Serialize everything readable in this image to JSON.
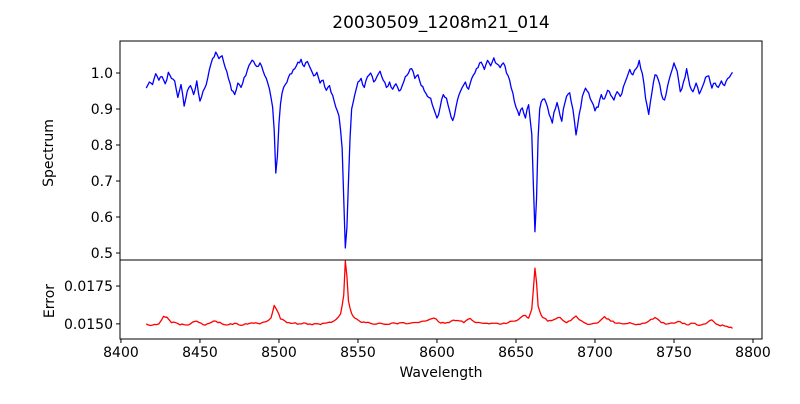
{
  "figure": {
    "background": "#ffffff",
    "axis_color": "#000000"
  },
  "chart_data": [
    {
      "type": "line",
      "title": "20030509_1208m21_014",
      "xlabel": "",
      "ylabel": "Spectrum",
      "xlim": [
        8399.4,
        8805.7
      ],
      "ylim": [
        0.4806,
        1.0889
      ],
      "grid": false,
      "legend": null,
      "yticks": [
        0.5,
        0.6,
        0.7,
        0.8,
        0.9,
        1.0
      ],
      "ytick_labels": [
        "0.5",
        "0.6",
        "0.7",
        "0.8",
        "0.9",
        "1.0"
      ],
      "xticks": [
        8400,
        8450,
        8500,
        8550,
        8600,
        8650,
        8700,
        8750,
        8800
      ],
      "xtick_labels": [
        "8400",
        "8450",
        "8500",
        "8550",
        "8600",
        "8650",
        "8700",
        "8750",
        "8800"
      ],
      "xtick_labels_visible": false,
      "noise": {
        "amplitude": 0.006,
        "step": 1.3,
        "seed": 11
      },
      "series": [
        {
          "name": "spectrum",
          "color": "#0000ff",
          "x": [
            8416,
            8418,
            8420,
            8422,
            8424,
            8426,
            8428,
            8430,
            8432,
            8434,
            8436,
            8438,
            8440,
            8442,
            8444,
            8446,
            8448,
            8450,
            8452,
            8454,
            8456,
            8458,
            8460,
            8462,
            8464,
            8466,
            8468,
            8470,
            8472,
            8474,
            8476,
            8478,
            8480,
            8482,
            8484,
            8486,
            8488,
            8490,
            8492,
            8494,
            8496,
            8497,
            8498,
            8499,
            8500,
            8501,
            8502,
            8504,
            8506,
            8508,
            8510,
            8512,
            8514,
            8516,
            8518,
            8520,
            8522,
            8524,
            8526,
            8528,
            8530,
            8532,
            8534,
            8536,
            8538,
            8540,
            8541,
            8542,
            8543,
            8544,
            8545,
            8546,
            8548,
            8550,
            8552,
            8554,
            8556,
            8558,
            8560,
            8562,
            8564,
            8566,
            8568,
            8570,
            8572,
            8574,
            8576,
            8578,
            8580,
            8582,
            8584,
            8586,
            8588,
            8590,
            8592,
            8594,
            8596,
            8598,
            8600,
            8602,
            8604,
            8606,
            8608,
            8610,
            8612,
            8614,
            8616,
            8618,
            8620,
            8622,
            8624,
            8626,
            8628,
            8630,
            8632,
            8634,
            8636,
            8638,
            8640,
            8642,
            8644,
            8646,
            8648,
            8650,
            8652,
            8654,
            8656,
            8658,
            8660,
            8661,
            8662,
            8663,
            8664,
            8665,
            8666,
            8668,
            8670,
            8672,
            8673,
            8674,
            8676,
            8678,
            8679,
            8680,
            8682,
            8684,
            8686,
            8688,
            8690,
            8692,
            8694,
            8696,
            8698,
            8700,
            8702,
            8704,
            8706,
            8708,
            8710,
            8712,
            8714,
            8716,
            8718,
            8720,
            8722,
            8724,
            8726,
            8728,
            8730,
            8732,
            8734,
            8736,
            8738,
            8740,
            8742,
            8744,
            8746,
            8748,
            8750,
            8752,
            8754,
            8756,
            8758,
            8760,
            8762,
            8764,
            8766,
            8768,
            8770,
            8772,
            8774,
            8776,
            8778,
            8780,
            8782,
            8784,
            8786,
            8787
          ],
          "y": [
            0.958,
            0.975,
            0.968,
            0.998,
            0.98,
            0.99,
            0.97,
            1.002,
            0.985,
            0.978,
            0.932,
            0.968,
            0.908,
            0.95,
            0.965,
            0.94,
            0.978,
            0.922,
            0.95,
            0.968,
            1.01,
            1.04,
            1.058,
            1.04,
            1.048,
            1.015,
            0.985,
            0.952,
            0.94,
            0.972,
            0.96,
            0.988,
            1.008,
            1.028,
            1.032,
            1.018,
            1.028,
            1.005,
            0.985,
            0.955,
            0.905,
            0.84,
            0.722,
            0.768,
            0.86,
            0.915,
            0.945,
            0.968,
            0.988,
            0.998,
            1.012,
            1.03,
            1.038,
            1.018,
            1.032,
            1.012,
            0.992,
            1.002,
            0.972,
            0.98,
            0.952,
            0.965,
            0.938,
            0.905,
            0.88,
            0.79,
            0.65,
            0.514,
            0.57,
            0.7,
            0.82,
            0.9,
            0.94,
            0.975,
            0.985,
            0.96,
            0.99,
            1.0,
            0.975,
            0.99,
            1.005,
            0.98,
            0.96,
            0.975,
            0.955,
            0.97,
            0.95,
            0.965,
            0.99,
            1.0,
            1.012,
            0.985,
            0.995,
            0.965,
            0.95,
            0.935,
            0.93,
            0.9,
            0.875,
            0.905,
            0.94,
            0.93,
            0.895,
            0.868,
            0.905,
            0.94,
            0.96,
            0.975,
            0.955,
            0.985,
            1.0,
            1.015,
            1.03,
            1.01,
            1.035,
            1.02,
            1.042,
            1.025,
            1.015,
            1.028,
            1.0,
            0.98,
            0.945,
            0.905,
            0.882,
            0.903,
            0.875,
            0.912,
            0.83,
            0.69,
            0.559,
            0.65,
            0.82,
            0.9,
            0.92,
            0.928,
            0.905,
            0.875,
            0.861,
            0.89,
            0.918,
            0.88,
            0.866,
            0.9,
            0.935,
            0.945,
            0.9,
            0.828,
            0.885,
            0.935,
            0.958,
            0.945,
            0.92,
            0.895,
            0.905,
            0.94,
            0.928,
            0.952,
            0.938,
            0.925,
            0.948,
            0.935,
            0.962,
            0.985,
            1.01,
            0.995,
            1.012,
            1.035,
            0.998,
            0.93,
            0.885,
            0.945,
            0.995,
            0.982,
            0.942,
            0.925,
            0.965,
            0.998,
            1.028,
            1.005,
            0.948,
            0.975,
            1.012,
            0.965,
            0.948,
            0.972,
            0.942,
            0.962,
            0.988,
            0.992,
            0.958,
            0.972,
            0.96,
            0.978,
            0.965,
            0.985,
            0.995,
            1.002
          ]
        }
      ]
    },
    {
      "type": "line",
      "title": "",
      "xlabel": "Wavelength",
      "ylabel": "Error",
      "xlim": [
        8399.4,
        8805.7
      ],
      "ylim": [
        0.014,
        0.01922
      ],
      "grid": false,
      "legend": null,
      "yticks": [
        0.015,
        0.0175
      ],
      "ytick_labels": [
        "0.0150",
        "0.0175"
      ],
      "xticks": [
        8400,
        8450,
        8500,
        8550,
        8600,
        8650,
        8700,
        8750,
        8800
      ],
      "xtick_labels": [
        "8400",
        "8450",
        "8500",
        "8550",
        "8600",
        "8650",
        "8700",
        "8750",
        "8800"
      ],
      "xtick_labels_visible": true,
      "noise": {
        "amplitude": 6e-05,
        "step": 1.3,
        "seed": 23
      },
      "series": [
        {
          "name": "error",
          "color": "#ff0000",
          "x": [
            8416,
            8420,
            8424,
            8427,
            8429,
            8432,
            8436,
            8440,
            8444,
            8448,
            8452,
            8456,
            8460,
            8464,
            8468,
            8472,
            8476,
            8480,
            8484,
            8488,
            8492,
            8495,
            8497,
            8499,
            8501,
            8505,
            8509,
            8513,
            8517,
            8521,
            8525,
            8529,
            8533,
            8536,
            8539,
            8541,
            8542,
            8543,
            8544,
            8546,
            8548,
            8551,
            8555,
            8559,
            8563,
            8567,
            8571,
            8575,
            8579,
            8583,
            8587,
            8591,
            8595,
            8598,
            8601,
            8605,
            8609,
            8613,
            8617,
            8621,
            8625,
            8629,
            8633,
            8637,
            8641,
            8645,
            8649,
            8653,
            8656,
            8658,
            8660,
            8662,
            8663,
            8664,
            8666,
            8668,
            8670,
            8674,
            8678,
            8682,
            8686,
            8688,
            8690,
            8694,
            8698,
            8702,
            8706,
            8710,
            8714,
            8718,
            8722,
            8726,
            8730,
            8734,
            8738,
            8742,
            8746,
            8750,
            8754,
            8758,
            8762,
            8766,
            8770,
            8774,
            8778,
            8782,
            8785,
            8787
          ],
          "y": [
            0.015,
            0.01492,
            0.015,
            0.0155,
            0.01545,
            0.01508,
            0.01502,
            0.01494,
            0.015,
            0.01518,
            0.01494,
            0.01504,
            0.01518,
            0.015,
            0.01494,
            0.01504,
            0.0149,
            0.01498,
            0.01504,
            0.015,
            0.01515,
            0.0154,
            0.01622,
            0.01585,
            0.01532,
            0.01508,
            0.01504,
            0.015,
            0.01504,
            0.01494,
            0.015,
            0.01504,
            0.0151,
            0.01528,
            0.01565,
            0.0169,
            0.01915,
            0.01815,
            0.0165,
            0.01568,
            0.01538,
            0.01518,
            0.01508,
            0.015,
            0.01504,
            0.01497,
            0.01504,
            0.015,
            0.01508,
            0.01504,
            0.01509,
            0.01518,
            0.01528,
            0.01538,
            0.01514,
            0.01504,
            0.01518,
            0.01522,
            0.01508,
            0.01536,
            0.01508,
            0.01504,
            0.015,
            0.01504,
            0.015,
            0.01508,
            0.01518,
            0.01542,
            0.01556,
            0.01538,
            0.01598,
            0.01868,
            0.01775,
            0.01618,
            0.01556,
            0.01538,
            0.01518,
            0.01528,
            0.01542,
            0.01508,
            0.01536,
            0.01552,
            0.01528,
            0.01504,
            0.015,
            0.01508,
            0.01548,
            0.01518,
            0.01504,
            0.015,
            0.01508,
            0.01494,
            0.01504,
            0.01518,
            0.01542,
            0.01508,
            0.015,
            0.01504,
            0.01514,
            0.01494,
            0.01504,
            0.0149,
            0.015,
            0.01526,
            0.01494,
            0.01486,
            0.01476,
            0.0147
          ]
        }
      ]
    }
  ]
}
